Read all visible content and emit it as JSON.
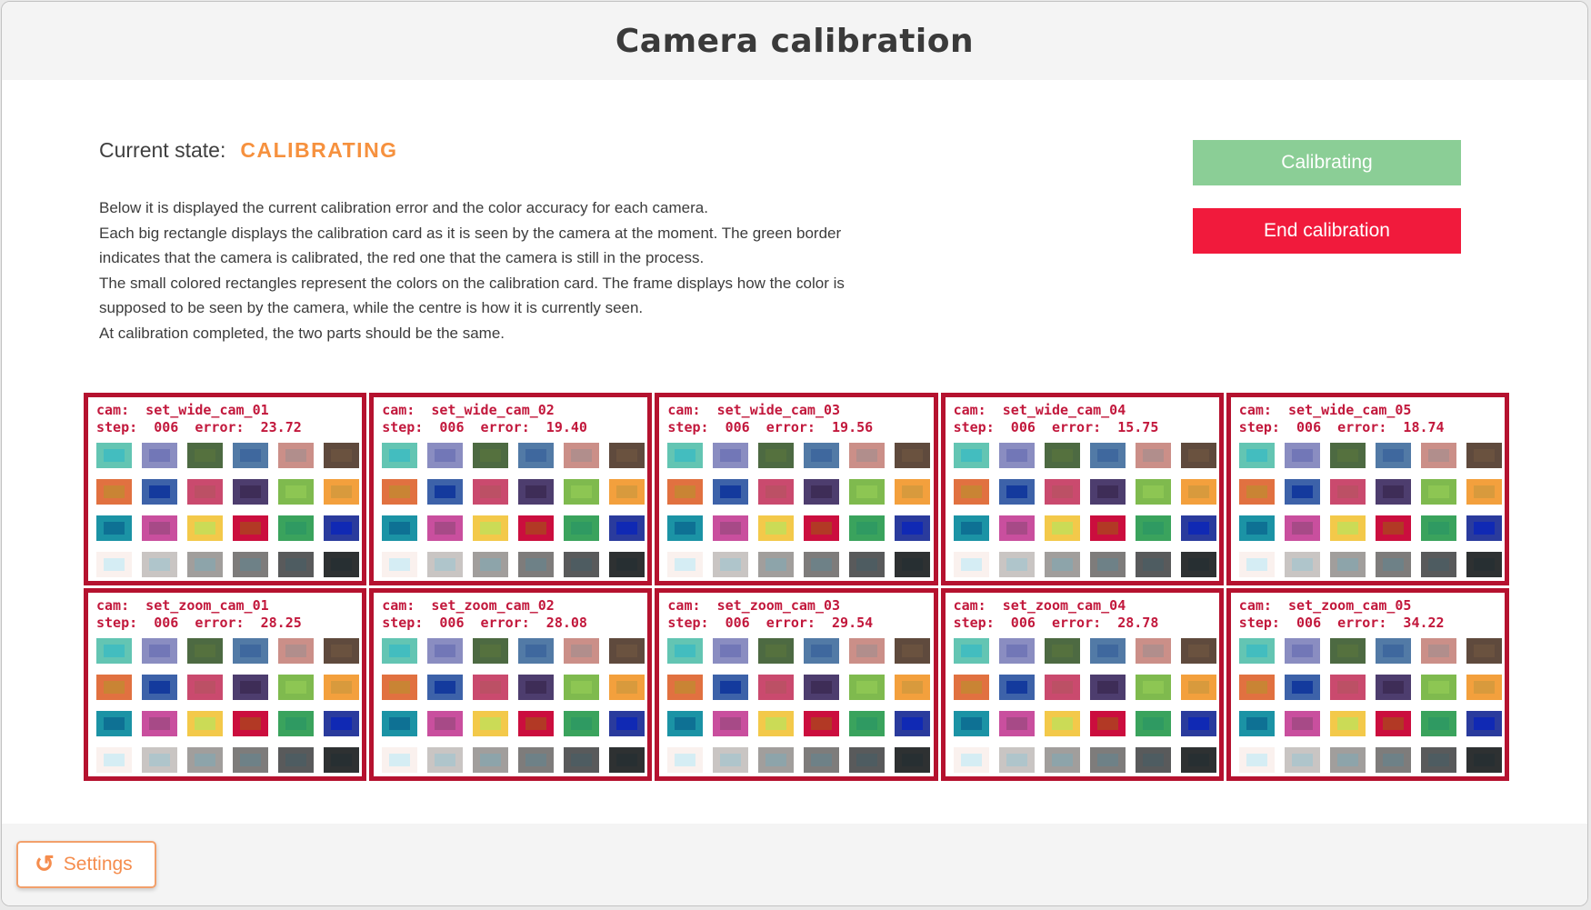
{
  "header": {
    "title": "Camera calibration"
  },
  "status": {
    "label": "Current state:",
    "value": "CALIBRATING",
    "value_color": "#f6913e"
  },
  "description": {
    "lines": [
      "Below it is displayed the current calibration error and the color accuracy for each camera.",
      "Each big rectangle displays the calibration card as it is seen by the camera at the moment. The green border",
      "indicates that the camera is calibrated, the red one that the camera is still in the process.",
      "The small colored rectangles represent the colors on the calibration card. The frame displays how the color is",
      "supposed to be seen by the camera, while the centre is how it is currently seen.",
      "At calibration completed, the two parts should be the same."
    ]
  },
  "actions": {
    "calibrating_label": "Calibrating",
    "calibrating_color": "#8bce96",
    "end_label": "End calibration",
    "end_color": "#f11a3c"
  },
  "footer": {
    "settings_label": "Settings",
    "settings_icon": "rotate-ccw-icon",
    "settings_icon_glyph": "↺",
    "accent_color": "#f58d4e"
  },
  "cards": {
    "border_color": "#b5122f",
    "text_color": "#c2183c",
    "cam_prefix": "cam:",
    "step_prefix": "step:",
    "error_prefix": "error:",
    "items": [
      {
        "cam": "set_wide_cam_01",
        "step": "006",
        "error": "23.72"
      },
      {
        "cam": "set_wide_cam_02",
        "step": "006",
        "error": "19.40"
      },
      {
        "cam": "set_wide_cam_03",
        "step": "006",
        "error": "19.56"
      },
      {
        "cam": "set_wide_cam_04",
        "step": "006",
        "error": "15.75"
      },
      {
        "cam": "set_wide_cam_05",
        "step": "006",
        "error": "18.74"
      },
      {
        "cam": "set_zoom_cam_01",
        "step": "006",
        "error": "28.25"
      },
      {
        "cam": "set_zoom_cam_02",
        "step": "006",
        "error": "28.08"
      },
      {
        "cam": "set_zoom_cam_03",
        "step": "006",
        "error": "29.54"
      },
      {
        "cam": "set_zoom_cam_04",
        "step": "006",
        "error": "28.78"
      },
      {
        "cam": "set_zoom_cam_05",
        "step": "006",
        "error": "34.22"
      }
    ],
    "palette_rows": [
      [
        {
          "name": "bluish-green",
          "frame": "#63c5b3",
          "centre": "#43bdbf"
        },
        {
          "name": "blue-flower",
          "frame": "#8a8dc1",
          "centre": "#7277b7"
        },
        {
          "name": "foliage",
          "frame": "#4d6a42",
          "centre": "#55713e"
        },
        {
          "name": "blue-sky",
          "frame": "#527aa6",
          "centre": "#3f689e"
        },
        {
          "name": "light-skin",
          "frame": "#cb8f88",
          "centre": "#b18e8c"
        },
        {
          "name": "dark-skin",
          "frame": "#5f4a3d",
          "centre": "#6a523f"
        }
      ],
      [
        {
          "name": "orange",
          "frame": "#e17140",
          "centre": "#c98434"
        },
        {
          "name": "purplish-blue",
          "frame": "#3d62a9",
          "centre": "#143a9d"
        },
        {
          "name": "moderate-red",
          "frame": "#ca4a6e",
          "centre": "#bc5065"
        },
        {
          "name": "purple",
          "frame": "#4d3d6e",
          "centre": "#3e2d57"
        },
        {
          "name": "yellow-green",
          "frame": "#7fba4e",
          "centre": "#8dc653"
        },
        {
          "name": "orange-yellow",
          "frame": "#f3a03d",
          "centre": "#d89a3d"
        }
      ],
      [
        {
          "name": "cyan",
          "frame": "#1b93a5",
          "centre": "#0e7194"
        },
        {
          "name": "magenta",
          "frame": "#c94f9e",
          "centre": "#a74a87"
        },
        {
          "name": "yellow",
          "frame": "#f3c94a",
          "centre": "#cbdb56"
        },
        {
          "name": "red",
          "frame": "#cb0e3e",
          "centre": "#b23925"
        },
        {
          "name": "green",
          "frame": "#3aa35d",
          "centre": "#2f9a62"
        },
        {
          "name": "blue",
          "frame": "#2a3b9d",
          "centre": "#1029b4"
        }
      ],
      [
        {
          "name": "white",
          "frame": "#faf1ee",
          "centre": "#d5edf4"
        },
        {
          "name": "neutral-8",
          "frame": "#c9c5c3",
          "centre": "#afc5cb"
        },
        {
          "name": "neutral-6-5",
          "frame": "#a19e9c",
          "centre": "#8da4aa"
        },
        {
          "name": "neutral-5",
          "frame": "#7e7c7b",
          "centre": "#6e8187"
        },
        {
          "name": "neutral-3-5",
          "frame": "#595a5b",
          "centre": "#4e5c61"
        },
        {
          "name": "black",
          "frame": "#2e3132",
          "centre": "#272f32"
        }
      ]
    ]
  }
}
